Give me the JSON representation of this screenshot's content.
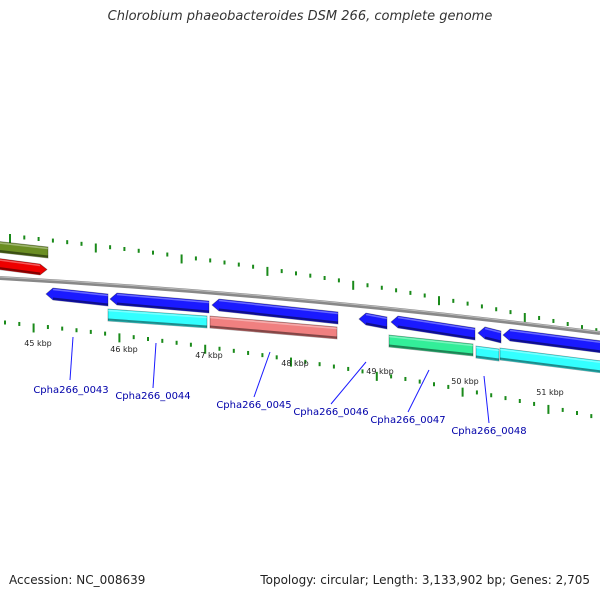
{
  "title": "Chlorobium phaeobacteroides DSM 266, complete genome",
  "footer": {
    "accession_label": "Accession:",
    "accession": "NC_008639",
    "topology_label": "Topology:",
    "topology": "circular",
    "length_label": "Length:",
    "length": "3,133,902 bp",
    "genes_label": "Genes:",
    "genes": "2,705"
  },
  "kbp_labels": [
    "45 kbp",
    "46 kbp",
    "47 kbp",
    "48 kbp",
    "49 kbp",
    "50 kbp",
    "51 kbp"
  ],
  "genes": [
    {
      "name": "Cpha266_0043",
      "color": "#1a1aff"
    },
    {
      "name": "Cpha266_0044",
      "color": "#1a1aff"
    },
    {
      "name": "Cpha266_0045",
      "color": "#1a1aff"
    },
    {
      "name": "Cpha266_0046",
      "color": "#1a1aff"
    },
    {
      "name": "Cpha266_0047",
      "color": "#1a1aff"
    },
    {
      "name": "Cpha266_0048",
      "color": "#1a1aff"
    }
  ],
  "colors": {
    "backbone": "#888888",
    "tick": "#1a8a1a",
    "gene_label": "#0000aa",
    "cds_blue": "#1a1aff",
    "cds_cyan": "#33ffff",
    "cds_salmon": "#f08080",
    "cds_green": "#33ee99",
    "cds_olive": "#6b8e23",
    "cds_red": "#ee0000"
  }
}
